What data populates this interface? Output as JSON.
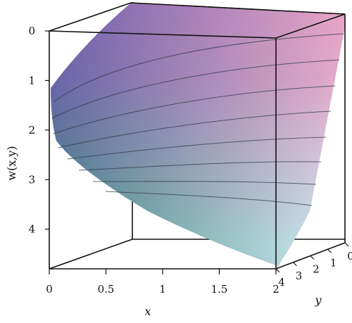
{
  "chart_data": {
    "type": "surface3d",
    "title": "",
    "xlabel": "x",
    "ylabel": "y",
    "zlabel": "w(x,y)",
    "x_ticks": [
      "0",
      "0.5",
      "1",
      "1.5",
      "2"
    ],
    "y_ticks": [
      "4",
      "3",
      "2",
      "1",
      "0"
    ],
    "z_ticks": [
      "0",
      "1",
      "2",
      "3",
      "4"
    ],
    "xlim": [
      0,
      2
    ],
    "ylim": [
      0,
      4
    ],
    "zlim": [
      0,
      4.8
    ],
    "z_axis_inverted": true,
    "colors": {
      "surface_top_left": "#7d6fb6",
      "surface_top_right": "#e7a8c6",
      "surface_bottom_left": "#4f9a86",
      "surface_bottom_right": "#d6e8f4",
      "box": "#111111"
    }
  }
}
